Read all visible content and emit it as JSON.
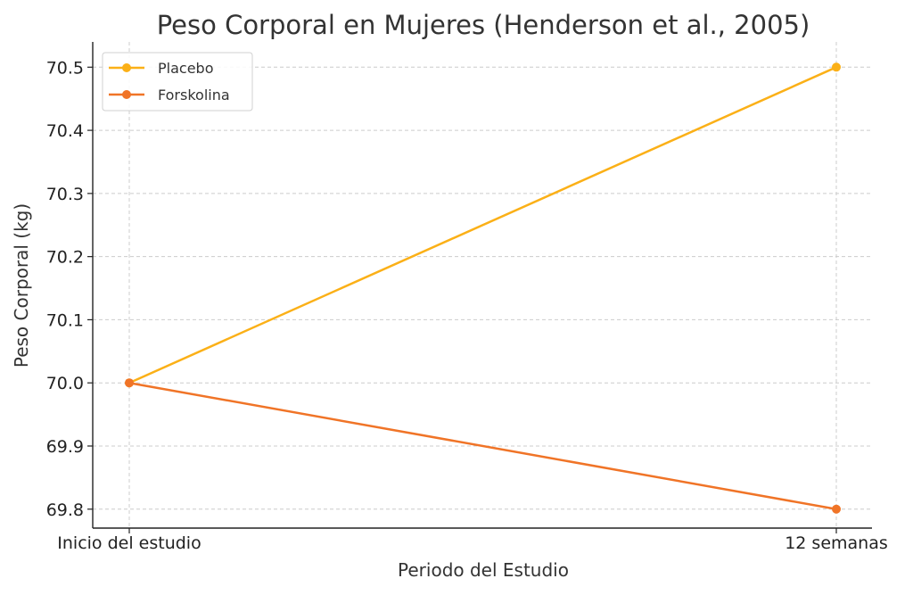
{
  "chart_data": {
    "type": "line",
    "title": "Peso Corporal en Mujeres (Henderson et al., 2005)",
    "xlabel": "Periodo del Estudio",
    "ylabel": "Peso Corporal (kg)",
    "categories": [
      "Inicio del estudio",
      "12 semanas"
    ],
    "yticks": [
      "69.8",
      "69.9",
      "70.0",
      "70.1",
      "70.2",
      "70.3",
      "70.4",
      "70.5"
    ],
    "ylim": [
      69.77,
      70.54
    ],
    "grid": true,
    "legend_position": "top-left",
    "series": [
      {
        "name": "Placebo",
        "values": [
          70.0,
          70.5
        ],
        "color": "#FBB017"
      },
      {
        "name": "Forskolina",
        "values": [
          70.0,
          69.8
        ],
        "color": "#F07427"
      }
    ]
  }
}
